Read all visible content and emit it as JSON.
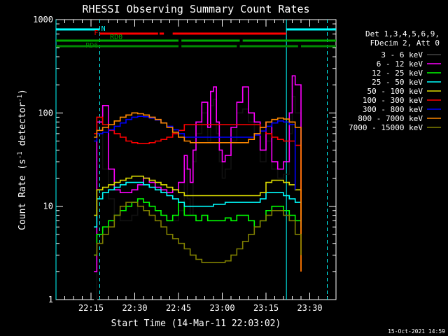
{
  "chart_data": {
    "type": "line",
    "title": "RHESSI Observing Summary Count Rates",
    "xlabel": "Start Time (14-Mar-11 22:03:02)",
    "ylabel_parts": [
      "Count Rate (s",
      "-1",
      " detector",
      "-1",
      ")"
    ],
    "y_scale": "log",
    "ylim": [
      1,
      1000
    ],
    "xlim_min": [
      0,
      96
    ],
    "x_ticks": [
      {
        "min": 12,
        "label": "22:15"
      },
      {
        "min": 27,
        "label": "22:30"
      },
      {
        "min": 42,
        "label": "22:45"
      },
      {
        "min": 57,
        "label": "23:00"
      },
      {
        "min": 72,
        "label": "23:15"
      },
      {
        "min": 87,
        "label": "23:30"
      }
    ],
    "y_ticks": [
      {
        "value": 1,
        "label": "1"
      },
      {
        "value": 10,
        "label": "10"
      },
      {
        "value": 100,
        "label": "100"
      },
      {
        "value": 1000,
        "label": "1000"
      }
    ],
    "legend_header": [
      "Det 1,3,4,5,6,9,",
      "FDecim 2, Att 0"
    ],
    "series": [
      {
        "name": "3 - 6 keV",
        "color": "#000000",
        "x": [
          13,
          14,
          16,
          18,
          20,
          22,
          24,
          26,
          28,
          30,
          32,
          34,
          36,
          38,
          40,
          42,
          44,
          45,
          46,
          47,
          48,
          50,
          52,
          53,
          54,
          55,
          56,
          57,
          58,
          60,
          62,
          64,
          66,
          68,
          70,
          72,
          74,
          76,
          78,
          80,
          81,
          82,
          84
        ],
        "y": [
          1,
          60,
          25,
          12,
          8,
          7,
          7,
          8,
          10,
          11,
          10,
          9,
          8,
          7,
          7,
          9,
          25,
          12,
          8,
          30,
          60,
          100,
          50,
          120,
          140,
          60,
          30,
          20,
          25,
          50,
          100,
          110,
          80,
          60,
          30,
          50,
          25,
          20,
          22,
          60,
          150,
          100,
          2
        ]
      },
      {
        "name": "6 - 12 keV",
        "color": "#ff00ff",
        "x": [
          13,
          14,
          16,
          18,
          20,
          22,
          24,
          26,
          28,
          30,
          32,
          34,
          36,
          38,
          40,
          42,
          44,
          45,
          46,
          47,
          48,
          50,
          52,
          53,
          54,
          55,
          56,
          57,
          58,
          60,
          62,
          64,
          66,
          68,
          70,
          72,
          74,
          76,
          78,
          80,
          81,
          82,
          84
        ],
        "y": [
          2,
          80,
          120,
          25,
          15,
          14,
          14,
          15,
          17,
          20,
          18,
          16,
          15,
          14,
          15,
          18,
          35,
          25,
          18,
          40,
          80,
          130,
          70,
          170,
          190,
          80,
          40,
          30,
          35,
          70,
          130,
          190,
          100,
          80,
          40,
          80,
          30,
          25,
          30,
          100,
          250,
          200,
          5
        ]
      },
      {
        "name": "12 - 25 keV",
        "color": "#00ff00",
        "x": [
          13,
          14,
          16,
          18,
          20,
          22,
          24,
          26,
          28,
          30,
          32,
          34,
          36,
          38,
          40,
          42,
          44,
          46,
          48,
          50,
          52,
          54,
          56,
          58,
          60,
          62,
          64,
          66,
          68,
          70,
          72,
          74,
          76,
          78,
          80,
          82,
          84
        ],
        "y": [
          3,
          5,
          6,
          7,
          8,
          9,
          10,
          11,
          12,
          11,
          10,
          9,
          8,
          7,
          8,
          11,
          8,
          8,
          7,
          8,
          7,
          7,
          7,
          7.5,
          7,
          8,
          8,
          7,
          6,
          7,
          9,
          10,
          10,
          9,
          8,
          7,
          3
        ]
      },
      {
        "name": "25 - 50 keV",
        "color": "#00ffff",
        "x": [
          13,
          14,
          16,
          18,
          20,
          22,
          24,
          26,
          28,
          30,
          32,
          34,
          36,
          38,
          40,
          42,
          44,
          46,
          48,
          50,
          52,
          54,
          56,
          58,
          60,
          62,
          64,
          66,
          68,
          70,
          72,
          74,
          76,
          78,
          80,
          82,
          84
        ],
        "y": [
          6,
          12,
          14,
          15,
          16,
          17,
          18,
          18,
          18,
          17,
          16,
          15,
          14,
          13,
          12,
          11,
          10,
          10,
          10,
          10,
          10,
          10.5,
          10.5,
          11,
          11,
          11,
          11,
          11,
          11,
          12,
          14,
          14,
          14,
          13,
          12,
          11,
          6
        ]
      },
      {
        "name": "50 - 100 keV",
        "color": "#dddd00",
        "x": [
          13,
          14,
          16,
          18,
          20,
          22,
          24,
          26,
          28,
          30,
          32,
          34,
          36,
          38,
          40,
          42,
          44,
          46,
          48,
          50,
          52,
          54,
          56,
          58,
          60,
          62,
          64,
          66,
          68,
          70,
          72,
          74,
          76,
          78,
          80,
          82,
          84
        ],
        "y": [
          8,
          15,
          16,
          17,
          18,
          19,
          20,
          21,
          21,
          20,
          19,
          18,
          17,
          16,
          15,
          14,
          13,
          13,
          13,
          13,
          13,
          13,
          13,
          13,
          13,
          13,
          13,
          13,
          13,
          14,
          18,
          19,
          19,
          18,
          17,
          15,
          8
        ]
      },
      {
        "name": "100 - 300 keV",
        "color": "#ff0000",
        "x": [
          13,
          14,
          16,
          18,
          20,
          22,
          24,
          26,
          28,
          30,
          32,
          34,
          36,
          38,
          40,
          42,
          44,
          46,
          48,
          50,
          52,
          54,
          56,
          58,
          60,
          62,
          64,
          66,
          68,
          70,
          72,
          74,
          76,
          78,
          80,
          82,
          84
        ],
        "y": [
          60,
          90,
          75,
          65,
          60,
          55,
          50,
          48,
          47,
          47,
          48,
          50,
          52,
          55,
          60,
          65,
          75,
          75,
          75,
          75,
          75,
          75,
          75,
          75,
          75,
          75,
          75,
          75,
          75,
          70,
          60,
          55,
          52,
          50,
          50,
          45,
          2
        ]
      },
      {
        "name": "300 - 800 keV",
        "color": "#0000ff",
        "x": [
          13,
          14,
          16,
          18,
          20,
          22,
          24,
          26,
          28,
          30,
          32,
          34,
          36,
          38,
          40,
          42,
          44,
          46,
          48,
          50,
          52,
          54,
          56,
          58,
          60,
          62,
          64,
          66,
          68,
          70,
          72,
          74,
          76,
          78,
          80,
          82
        ],
        "y": [
          50,
          60,
          62,
          66,
          72,
          78,
          85,
          90,
          92,
          91,
          88,
          84,
          78,
          72,
          66,
          60,
          55,
          55,
          55,
          55,
          55,
          55,
          55,
          55,
          55,
          55,
          55,
          55,
          58,
          64,
          72,
          78,
          82,
          80,
          75,
          15
        ]
      },
      {
        "name": "800 - 7000 keV",
        "color": "#ff8800",
        "x": [
          13,
          14,
          16,
          18,
          20,
          22,
          24,
          26,
          28,
          30,
          32,
          34,
          36,
          38,
          40,
          42,
          44,
          46,
          48,
          50,
          52,
          54,
          56,
          58,
          60,
          62,
          64,
          66,
          68,
          70,
          72,
          74,
          76,
          78,
          80,
          82,
          84
        ],
        "y": [
          55,
          65,
          70,
          75,
          82,
          90,
          95,
          100,
          98,
          95,
          90,
          85,
          78,
          70,
          62,
          55,
          50,
          48,
          48,
          48,
          48,
          48,
          48,
          48,
          48,
          48,
          48,
          52,
          60,
          70,
          80,
          85,
          88,
          86,
          80,
          70,
          2
        ]
      },
      {
        "name": "7000 - 15000 keV",
        "color": "#808000",
        "x": [
          13,
          14,
          16,
          18,
          20,
          22,
          24,
          26,
          28,
          30,
          32,
          34,
          36,
          38,
          40,
          42,
          44,
          46,
          48,
          50,
          52,
          54,
          56,
          58,
          60,
          62,
          64,
          66,
          68,
          70,
          72,
          74,
          76,
          78,
          80,
          82,
          84
        ],
        "y": [
          3,
          4,
          5,
          6,
          8,
          10,
          11,
          11,
          10,
          9,
          8,
          7,
          6,
          5,
          4.5,
          4,
          3.5,
          3,
          2.7,
          2.5,
          2.5,
          2.5,
          2.5,
          2.6,
          3,
          3.5,
          4.2,
          5,
          6,
          7,
          8,
          9,
          9,
          8,
          7,
          5,
          3
        ]
      }
    ],
    "status_bars": [
      {
        "name": "N",
        "color": "#00ffff",
        "segments": [
          [
            0,
            15
          ],
          [
            79,
            96
          ]
        ]
      },
      {
        "name": "F",
        "color": "#ff0000",
        "segments": [
          [
            15,
            35
          ],
          [
            35.5,
            37
          ],
          [
            40,
            79
          ]
        ]
      },
      {
        "name": "RD0",
        "color": "#00aa00",
        "segments": [
          [
            0,
            15
          ],
          [
            15,
            42
          ],
          [
            43,
            63
          ],
          [
            64,
            96
          ]
        ]
      },
      {
        "name": "RD6",
        "color": "#008800",
        "segments": [
          [
            0,
            15
          ],
          [
            15,
            42
          ],
          [
            43,
            62
          ],
          [
            63,
            83
          ],
          [
            84,
            96
          ]
        ]
      }
    ],
    "vertical_lines": [
      {
        "min": 0,
        "color": "#00ffff",
        "style": "solid"
      },
      {
        "min": 15,
        "color": "#00ffff",
        "style": "dashed"
      },
      {
        "min": 79,
        "color": "#00ffff",
        "style": "solid"
      },
      {
        "min": 93,
        "color": "#00ffff",
        "style": "dashed"
      }
    ],
    "timestamp": "15-Oct-2021 14:59"
  }
}
